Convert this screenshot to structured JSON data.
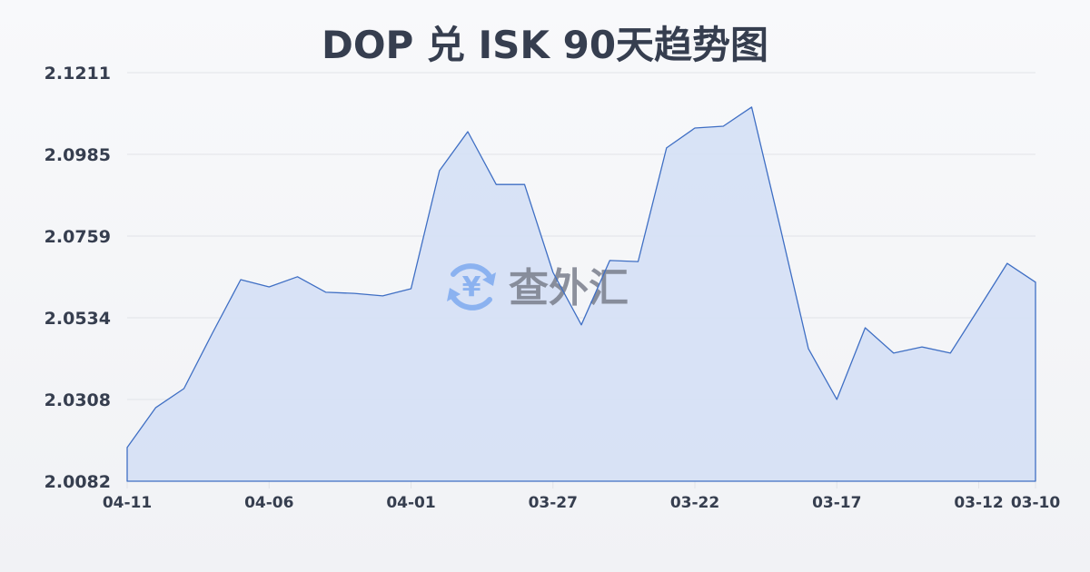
{
  "header": {
    "title": "DOP 兑 ISK 90天趋势图"
  },
  "watermark": {
    "icon": "yen-exchange-icon",
    "text": "查外汇"
  },
  "colors": {
    "line": "#3f6fc4",
    "fill": "#d5e0f5",
    "grid": "#e1e3e8",
    "text": "#363e4f",
    "watermark_icon": "#7eaaf0",
    "watermark_text": "#7a7f8c"
  },
  "chart_data": {
    "type": "area",
    "title": "DOP 兑 ISK 90天趋势图",
    "xlabel": "",
    "ylabel": "",
    "ylim": [
      2.0082,
      2.1211
    ],
    "yticks": [
      "2.1211",
      "2.0985",
      "2.0759",
      "2.0534",
      "2.0308",
      "2.0082"
    ],
    "xticks": [
      {
        "label": "04-11",
        "index": 0
      },
      {
        "label": "04-06",
        "index": 5
      },
      {
        "label": "04-01",
        "index": 10
      },
      {
        "label": "03-27",
        "index": 15
      },
      {
        "label": "03-22",
        "index": 20
      },
      {
        "label": "03-17",
        "index": 25
      },
      {
        "label": "03-12",
        "index": 30
      },
      {
        "label": "03-10",
        "index": 32
      }
    ],
    "grid": true,
    "legend": null,
    "categories": [
      "04-11",
      "04-10",
      "04-09",
      "04-08",
      "04-07",
      "04-06",
      "04-05",
      "04-04",
      "04-03",
      "04-02",
      "04-01",
      "03-31",
      "03-30",
      "03-29",
      "03-28",
      "03-27",
      "03-26",
      "03-25",
      "03-24",
      "03-23",
      "03-22",
      "03-21",
      "03-20",
      "03-19",
      "03-18",
      "03-17",
      "03-16",
      "03-15",
      "03-14",
      "03-13",
      "03-12",
      "03-11",
      "03-10"
    ],
    "series": [
      {
        "name": "DOP/ISK",
        "values": [
          2.0175,
          2.0285,
          2.0338,
          2.0491,
          2.0639,
          2.0619,
          2.0647,
          2.0604,
          2.0601,
          2.0594,
          2.0614,
          2.094,
          2.1048,
          2.0902,
          2.0902,
          2.0659,
          2.0514,
          2.0692,
          2.0689,
          2.1003,
          2.1058,
          2.1063,
          2.1116,
          2.0785,
          2.0448,
          2.0308,
          2.0506,
          2.0436,
          2.0453,
          2.0436,
          2.0559,
          2.0684,
          2.0632
        ]
      }
    ]
  }
}
